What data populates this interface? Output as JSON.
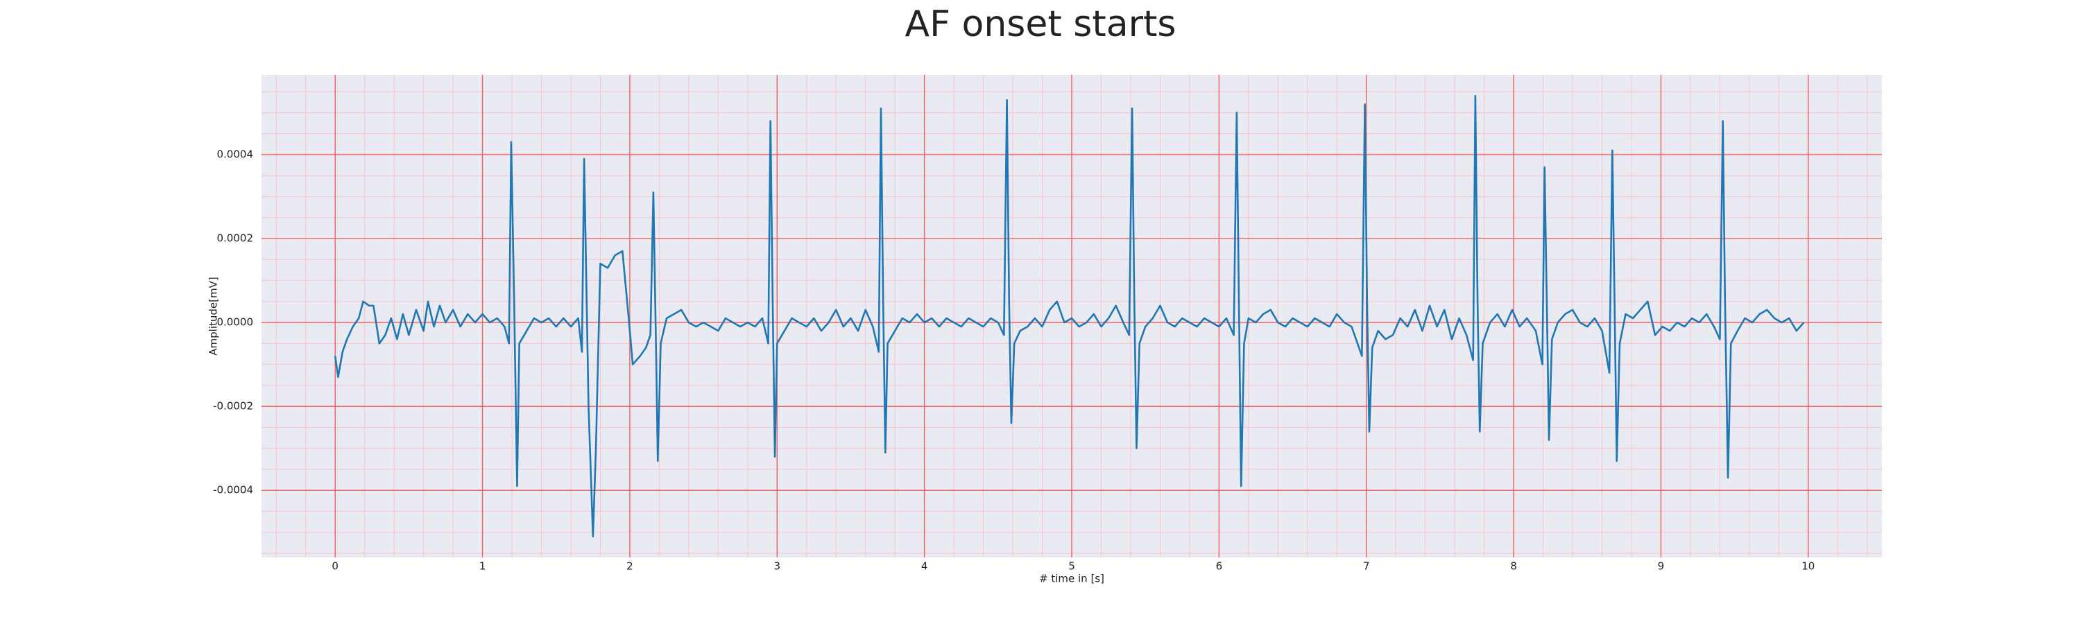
{
  "chart_data": {
    "type": "line",
    "title": "AF onset starts",
    "xlabel": "# time in [s]",
    "ylabel": "Amplitude[mV]",
    "color": "#1f77b4",
    "background": "#eaeaf2",
    "grid": true,
    "grid_color": "#f06060",
    "minor_grid": {
      "x_step": 0.2,
      "y_step": 5e-05,
      "color": "#f7c4cc"
    },
    "xlim": [
      -0.5,
      10.5
    ],
    "ylim": [
      -0.00056,
      0.00059
    ],
    "xticks": [
      0,
      1,
      2,
      3,
      4,
      5,
      6,
      7,
      8,
      9,
      10
    ],
    "yticks": [
      -0.0004,
      -0.0002,
      {
        "value": 0,
        "label": "0.0000"
      },
      0.0002,
      0.0004
    ],
    "x": [
      0,
      0.02,
      0.05,
      0.08,
      0.12,
      0.16,
      0.19,
      0.23,
      0.26,
      0.3,
      0.34,
      0.38,
      0.42,
      0.46,
      0.5,
      0.55,
      0.6,
      0.63,
      0.67,
      0.71,
      0.75,
      0.8,
      0.85,
      0.9,
      0.95,
      1.0,
      1.05,
      1.1,
      1.15,
      1.18,
      1.195,
      1.215,
      1.235,
      1.25,
      1.3,
      1.35,
      1.4,
      1.45,
      1.5,
      1.55,
      1.6,
      1.65,
      1.675,
      1.69,
      1.72,
      1.75,
      1.77,
      1.8,
      1.85,
      1.9,
      1.95,
      1.99,
      2.02,
      2.07,
      2.11,
      2.14,
      2.16,
      2.18,
      2.19,
      2.21,
      2.25,
      2.3,
      2.35,
      2.4,
      2.45,
      2.5,
      2.55,
      2.6,
      2.65,
      2.7,
      2.75,
      2.8,
      2.85,
      2.9,
      2.94,
      2.955,
      2.97,
      2.985,
      3.0,
      3.05,
      3.1,
      3.15,
      3.2,
      3.25,
      3.3,
      3.35,
      3.4,
      3.45,
      3.5,
      3.55,
      3.6,
      3.65,
      3.69,
      3.705,
      3.72,
      3.735,
      3.75,
      3.8,
      3.85,
      3.9,
      3.95,
      4.0,
      4.05,
      4.1,
      4.15,
      4.2,
      4.25,
      4.3,
      4.35,
      4.4,
      4.45,
      4.5,
      4.54,
      4.56,
      4.575,
      4.59,
      4.61,
      4.65,
      4.7,
      4.75,
      4.8,
      4.85,
      4.9,
      4.95,
      5.0,
      5.05,
      5.1,
      5.15,
      5.2,
      5.25,
      5.3,
      5.35,
      5.39,
      5.41,
      5.425,
      5.44,
      5.46,
      5.5,
      5.55,
      5.6,
      5.65,
      5.7,
      5.75,
      5.8,
      5.85,
      5.9,
      5.95,
      6.0,
      6.05,
      6.1,
      6.12,
      6.135,
      6.15,
      6.17,
      6.2,
      6.25,
      6.3,
      6.35,
      6.4,
      6.45,
      6.5,
      6.55,
      6.6,
      6.65,
      6.7,
      6.75,
      6.8,
      6.85,
      6.9,
      6.97,
      6.99,
      7.005,
      7.02,
      7.04,
      7.08,
      7.13,
      7.18,
      7.23,
      7.28,
      7.33,
      7.38,
      7.43,
      7.48,
      7.53,
      7.58,
      7.63,
      7.68,
      7.725,
      7.74,
      7.755,
      7.77,
      7.79,
      7.84,
      7.89,
      7.94,
      7.99,
      8.04,
      8.09,
      8.15,
      8.195,
      8.21,
      8.225,
      8.24,
      8.26,
      8.3,
      8.35,
      8.4,
      8.45,
      8.5,
      8.55,
      8.6,
      8.65,
      8.67,
      8.685,
      8.7,
      8.72,
      8.76,
      8.81,
      8.86,
      8.91,
      8.96,
      9.01,
      9.06,
      9.11,
      9.16,
      9.21,
      9.26,
      9.31,
      9.36,
      9.4,
      9.42,
      9.435,
      9.455,
      9.475,
      9.52,
      9.57,
      9.62,
      9.67,
      9.72,
      9.77,
      9.82,
      9.87,
      9.92,
      9.97
    ],
    "values": [
      -8e-05,
      -0.00013,
      -7e-05,
      -4e-05,
      -1e-05,
      1e-05,
      5e-05,
      4e-05,
      4e-05,
      -5e-05,
      -3e-05,
      1e-05,
      -4e-05,
      2e-05,
      -3e-05,
      3e-05,
      -2e-05,
      5e-05,
      -1e-05,
      4e-05,
      0,
      3e-05,
      -1e-05,
      2e-05,
      0,
      2e-05,
      0,
      1e-05,
      -1e-05,
      -5e-05,
      0.00043,
      5e-05,
      -0.00039,
      -5e-05,
      -2e-05,
      1e-05,
      0,
      1e-05,
      -1e-05,
      1e-05,
      -1e-05,
      1e-05,
      -7e-05,
      0.00039,
      -0.0002,
      -0.00051,
      -0.0003,
      0.00014,
      0.00013,
      0.00016,
      0.00017,
      2e-05,
      -0.0001,
      -8e-05,
      -6e-05,
      -3e-05,
      0.00031,
      -0.0001,
      -0.00033,
      -5e-05,
      1e-05,
      2e-05,
      3e-05,
      0,
      -1e-05,
      0,
      -1e-05,
      -2e-05,
      1e-05,
      0,
      -1e-05,
      0,
      -1e-05,
      1e-05,
      -5e-05,
      0.00048,
      5e-05,
      -0.00032,
      -5e-05,
      -2e-05,
      1e-05,
      0,
      -1e-05,
      1e-05,
      -2e-05,
      0,
      3e-05,
      -1e-05,
      1e-05,
      -2e-05,
      3e-05,
      -1e-05,
      -7e-05,
      0.00051,
      5e-05,
      -0.00031,
      -5e-05,
      -2e-05,
      1e-05,
      0,
      2e-05,
      0,
      1e-05,
      -1e-05,
      1e-05,
      0,
      -1e-05,
      1e-05,
      0,
      -1e-05,
      1e-05,
      0,
      -3e-05,
      0.00053,
      5e-05,
      -0.00024,
      -5e-05,
      -2e-05,
      -1e-05,
      1e-05,
      -1e-05,
      3e-05,
      5e-05,
      0,
      1e-05,
      -1e-05,
      0,
      2e-05,
      -1e-05,
      1e-05,
      4e-05,
      0,
      -3e-05,
      0.00051,
      5e-05,
      -0.0003,
      -5e-05,
      -1e-05,
      1e-05,
      4e-05,
      0,
      -1e-05,
      1e-05,
      0,
      -1e-05,
      1e-05,
      0,
      -1e-05,
      1e-05,
      -3e-05,
      0.0005,
      5e-05,
      -0.00039,
      -5e-05,
      1e-05,
      0,
      2e-05,
      3e-05,
      0,
      -1e-05,
      1e-05,
      0,
      -1e-05,
      1e-05,
      0,
      -1e-05,
      2e-05,
      0,
      -1e-05,
      -8e-05,
      0.00052,
      5e-05,
      -0.00026,
      -6e-05,
      -2e-05,
      -4e-05,
      -3e-05,
      1e-05,
      -1e-05,
      3e-05,
      -2e-05,
      4e-05,
      -1e-05,
      3e-05,
      -4e-05,
      1e-05,
      -3e-05,
      -9e-05,
      0.00054,
      5e-05,
      -0.00026,
      -5e-05,
      0,
      2e-05,
      -1e-05,
      3e-05,
      -1e-05,
      1e-05,
      -2e-05,
      -0.0001,
      0.00037,
      5e-05,
      -0.00028,
      -4e-05,
      0,
      2e-05,
      3e-05,
      0,
      -1e-05,
      1e-05,
      -2e-05,
      -0.00012,
      0.00041,
      5e-05,
      -0.00033,
      -5e-05,
      2e-05,
      1e-05,
      3e-05,
      5e-05,
      -3e-05,
      -1e-05,
      -2e-05,
      0,
      -1e-05,
      1e-05,
      0,
      2e-05,
      -1e-05,
      -4e-05,
      0.00048,
      5e-05,
      -0.00037,
      -5e-05,
      -2e-05,
      1e-05,
      0,
      2e-05,
      3e-05,
      1e-05,
      0,
      1e-05,
      -2e-05,
      0
    ]
  }
}
